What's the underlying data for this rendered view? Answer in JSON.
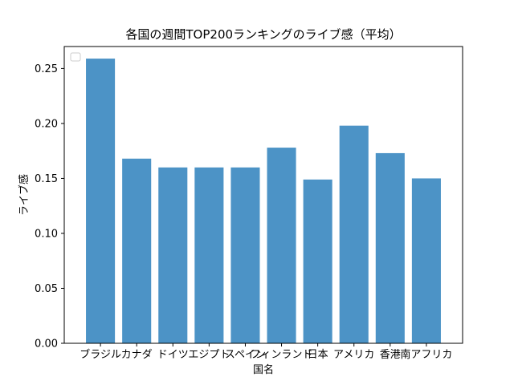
{
  "chart_data": {
    "type": "bar",
    "title": "各国の週間TOP200ランキングのライブ感（平均）",
    "xlabel": "国名",
    "ylabel": "ライブ感",
    "categories": [
      "ブラジル",
      "カナダ",
      "ドイツ",
      "エジプト",
      "スペイン",
      "フィンランド",
      "日本",
      "アメリカ",
      "香港",
      "南アフリカ"
    ],
    "values": [
      0.259,
      0.168,
      0.16,
      0.16,
      0.16,
      0.178,
      0.149,
      0.198,
      0.173,
      0.15
    ],
    "ylim": [
      0,
      0.27
    ],
    "yticks": [
      "0.00",
      "0.05",
      "0.10",
      "0.15",
      "0.20",
      "0.25"
    ],
    "bar_color": "#4c93c6",
    "grid": false,
    "legend": "top-left (empty)"
  }
}
